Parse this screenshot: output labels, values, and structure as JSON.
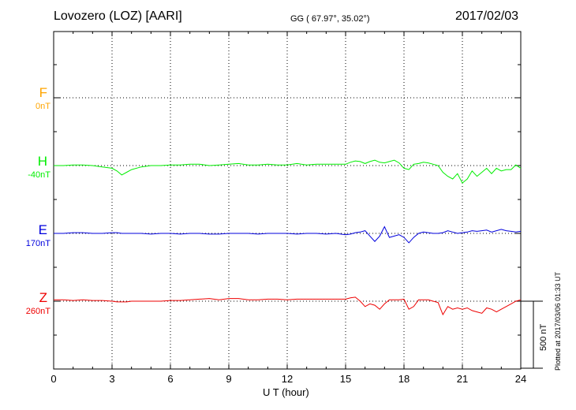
{
  "header": {
    "station": "Lovozero (LOZ)  [AARI]",
    "coords": "GG ( 67.97°,  35.02°)",
    "date": "2017/02/03"
  },
  "footer": {
    "plotted": "Plotted at 2017/03/06 01:33 UT"
  },
  "chart_data": {
    "type": "line",
    "title": "Lovozero (LOZ)  [AARI]",
    "xlabel": "U T (hour)",
    "ylabel": "",
    "xlim": [
      0,
      24
    ],
    "x_ticks": [
      0,
      3,
      6,
      9,
      12,
      15,
      18,
      21,
      24
    ],
    "x_tick_labels": [
      "0",
      "3",
      "6",
      "9",
      "12",
      "15",
      "18",
      "21",
      "24"
    ],
    "scale_bar_label": "500 nT",
    "scale_bar_nT": 500,
    "grid": true,
    "sample_x": [
      0,
      0.5,
      1,
      1.5,
      2,
      2.5,
      3,
      3.25,
      3.5,
      3.75,
      4,
      4.5,
      5,
      5.5,
      6,
      6.5,
      7,
      7.5,
      8,
      8.5,
      9,
      9.5,
      10,
      10.5,
      11,
      11.5,
      12,
      12.5,
      13,
      13.5,
      14,
      14.5,
      15,
      15.25,
      15.5,
      15.75,
      16,
      16.25,
      16.5,
      16.75,
      17,
      17.25,
      17.5,
      17.75,
      18,
      18.25,
      18.5,
      18.75,
      19,
      19.25,
      19.5,
      19.75,
      20,
      20.25,
      20.5,
      20.75,
      21,
      21.25,
      21.5,
      21.75,
      22,
      22.25,
      22.5,
      22.75,
      23,
      23.25,
      23.5,
      23.75,
      24
    ],
    "series": [
      {
        "name": "F",
        "offset_label": "0nT",
        "color": "#ffa500",
        "values": null
      },
      {
        "name": "H",
        "offset_label": "-40nT",
        "color": "#00ee00",
        "values": [
          0,
          0,
          5,
          5,
          0,
          -10,
          -20,
          -40,
          -70,
          -50,
          -30,
          -10,
          0,
          0,
          5,
          5,
          10,
          10,
          0,
          5,
          10,
          15,
          5,
          5,
          10,
          5,
          5,
          15,
          5,
          10,
          10,
          10,
          10,
          25,
          35,
          30,
          15,
          30,
          40,
          25,
          20,
          30,
          40,
          20,
          -20,
          -30,
          10,
          15,
          25,
          20,
          10,
          0,
          -50,
          -80,
          -100,
          -60,
          -130,
          -100,
          -40,
          -80,
          -50,
          -20,
          -60,
          -20,
          -40,
          -30,
          -30,
          5,
          -20
        ]
      },
      {
        "name": "E",
        "offset_label": "170nT",
        "color": "#0000dd",
        "values": [
          0,
          0,
          5,
          5,
          0,
          0,
          5,
          5,
          0,
          0,
          0,
          0,
          -5,
          0,
          0,
          -5,
          0,
          0,
          -5,
          -5,
          0,
          0,
          0,
          -5,
          0,
          0,
          0,
          -5,
          0,
          0,
          -5,
          0,
          -10,
          -5,
          5,
          10,
          20,
          -20,
          -60,
          -20,
          50,
          -30,
          -20,
          -10,
          -30,
          -70,
          -30,
          0,
          10,
          5,
          0,
          0,
          5,
          20,
          10,
          0,
          5,
          10,
          20,
          15,
          20,
          25,
          10,
          20,
          30,
          20,
          15,
          10,
          15
        ]
      },
      {
        "name": "Z",
        "offset_label": "260nT",
        "color": "#ee0000",
        "values": [
          10,
          10,
          5,
          10,
          5,
          5,
          0,
          -5,
          -5,
          -5,
          0,
          0,
          0,
          0,
          5,
          5,
          10,
          15,
          20,
          10,
          20,
          20,
          10,
          10,
          15,
          15,
          10,
          15,
          15,
          15,
          15,
          15,
          15,
          25,
          30,
          0,
          -40,
          -20,
          -30,
          -60,
          -20,
          10,
          10,
          10,
          15,
          -60,
          -40,
          10,
          10,
          10,
          0,
          -10,
          -100,
          -40,
          -60,
          -50,
          -60,
          -50,
          -70,
          -80,
          -90,
          -50,
          -60,
          -80,
          -60,
          -40,
          -20,
          0,
          10
        ]
      }
    ]
  }
}
